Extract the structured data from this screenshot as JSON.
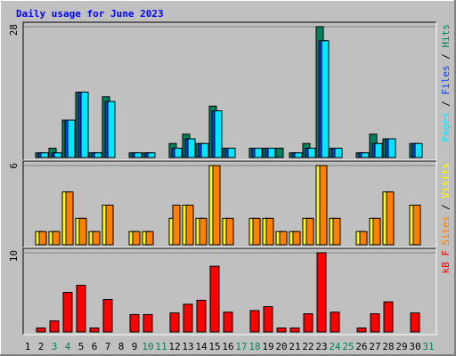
{
  "chart_data": [
    {
      "type": "bar",
      "title": "Daily usage for June 2023",
      "legend_separator": " / ",
      "ylim": [
        0,
        28
      ],
      "yticks": [
        28
      ],
      "series": [
        {
          "name": "Hits",
          "color": "#00805c",
          "values": [
            0,
            1,
            2,
            8,
            14,
            1,
            13,
            0,
            1,
            1,
            0,
            3,
            5,
            3,
            11,
            2,
            0,
            2,
            2,
            2,
            1,
            3,
            28,
            2,
            0,
            1,
            5,
            4,
            0,
            3,
            0
          ]
        },
        {
          "name": "Files",
          "color": "#0040ff",
          "values": [
            0,
            1,
            1,
            8,
            14,
            1,
            12,
            0,
            1,
            1,
            0,
            2,
            4,
            3,
            10,
            2,
            0,
            2,
            2,
            0,
            1,
            2,
            25,
            2,
            0,
            1,
            3,
            4,
            0,
            3,
            0
          ]
        },
        {
          "name": "Pages",
          "color": "#00e8ff",
          "values": [
            0,
            1,
            1,
            8,
            14,
            1,
            12,
            0,
            1,
            1,
            0,
            2,
            4,
            3,
            10,
            2,
            0,
            2,
            2,
            0,
            1,
            2,
            25,
            2,
            0,
            1,
            3,
            4,
            0,
            3,
            0
          ]
        }
      ]
    },
    {
      "type": "bar",
      "legend_separator": " / ",
      "ylim": [
        0,
        6
      ],
      "yticks": [
        6
      ],
      "series": [
        {
          "name": "Visits",
          "color": "#ffff00",
          "values": [
            0,
            1,
            1,
            4,
            2,
            1,
            3,
            0,
            1,
            1,
            0,
            2,
            3,
            2,
            6,
            2,
            0,
            2,
            2,
            1,
            1,
            2,
            6,
            2,
            0,
            1,
            2,
            4,
            0,
            3,
            0
          ]
        },
        {
          "name": "Sites",
          "color": "#ff8000",
          "values": [
            0,
            1,
            1,
            4,
            2,
            1,
            3,
            0,
            1,
            1,
            0,
            3,
            3,
            2,
            6,
            2,
            0,
            2,
            2,
            1,
            1,
            2,
            6,
            2,
            0,
            1,
            2,
            4,
            0,
            3,
            0
          ]
        }
      ]
    },
    {
      "type": "bar",
      "ylim": [
        0,
        10
      ],
      "yticks": [
        10
      ],
      "categories": [
        "1",
        "2",
        "3",
        "4",
        "5",
        "6",
        "7",
        "8",
        "9",
        "10",
        "11",
        "12",
        "13",
        "14",
        "15",
        "16",
        "17",
        "18",
        "19",
        "20",
        "21",
        "22",
        "23",
        "24",
        "25",
        "26",
        "27",
        "28",
        "29",
        "30",
        "31"
      ],
      "category_colors": [
        "#000000",
        "#000000",
        "#00805c",
        "#00805c",
        "#000000",
        "#000000",
        "#000000",
        "#000000",
        "#000000",
        "#00805c",
        "#00805c",
        "#000000",
        "#000000",
        "#000000",
        "#000000",
        "#000000",
        "#00805c",
        "#00805c",
        "#000000",
        "#000000",
        "#000000",
        "#000000",
        "#000000",
        "#00805c",
        "#00805c",
        "#000000",
        "#000000",
        "#000000",
        "#000000",
        "#000000",
        "#00805c"
      ],
      "series": [
        {
          "name": "kB F",
          "color": "#ff0000",
          "values": [
            0,
            0.5,
            1.4,
            5,
            5.9,
            0.5,
            4.1,
            0,
            2.2,
            2.2,
            0,
            2.4,
            3.5,
            4,
            8.3,
            2.5,
            0,
            2.7,
            3.2,
            0.5,
            0.5,
            2.3,
            10,
            2.5,
            0,
            0.5,
            2.3,
            3.8,
            0,
            2.4,
            0
          ]
        }
      ]
    }
  ]
}
